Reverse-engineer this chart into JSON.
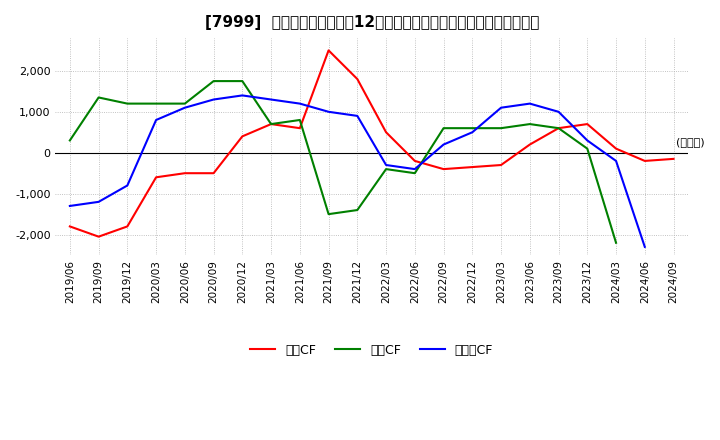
{
  "title": "[7999]  キャッシュフローの12か月移動合計の対前年同期増減額の推移",
  "ylabel": "(百万円)",
  "ylim": [
    -2500,
    2800
  ],
  "yticks": [
    -2000,
    -1000,
    0,
    1000,
    2000
  ],
  "dates": [
    "2019/06",
    "2019/09",
    "2019/12",
    "2020/03",
    "2020/06",
    "2020/09",
    "2020/12",
    "2021/03",
    "2021/06",
    "2021/09",
    "2021/12",
    "2022/03",
    "2022/06",
    "2022/09",
    "2022/12",
    "2023/03",
    "2023/06",
    "2023/09",
    "2023/12",
    "2024/03",
    "2024/06",
    "2024/09"
  ],
  "operating_cf": [
    -1800,
    -2050,
    -1800,
    -600,
    -500,
    -500,
    400,
    700,
    600,
    2500,
    1800,
    500,
    -200,
    -400,
    -350,
    -300,
    200,
    600,
    700,
    100,
    -200,
    -150
  ],
  "investing_cf": [
    300,
    1350,
    1200,
    1200,
    1200,
    1750,
    1750,
    700,
    800,
    -1500,
    -1400,
    -400,
    -500,
    600,
    600,
    600,
    700,
    600,
    100,
    -2200,
    null,
    null
  ],
  "free_cf": [
    -1300,
    -1200,
    -800,
    800,
    1100,
    1300,
    1400,
    1300,
    1200,
    1000,
    900,
    -300,
    -400,
    200,
    500,
    1100,
    1200,
    1000,
    300,
    -200,
    -2300,
    null
  ],
  "operating_color": "#ff0000",
  "investing_color": "#008000",
  "free_cf_color": "#0000ff",
  "background_color": "#ffffff",
  "grid_color": "#b0b0b0"
}
